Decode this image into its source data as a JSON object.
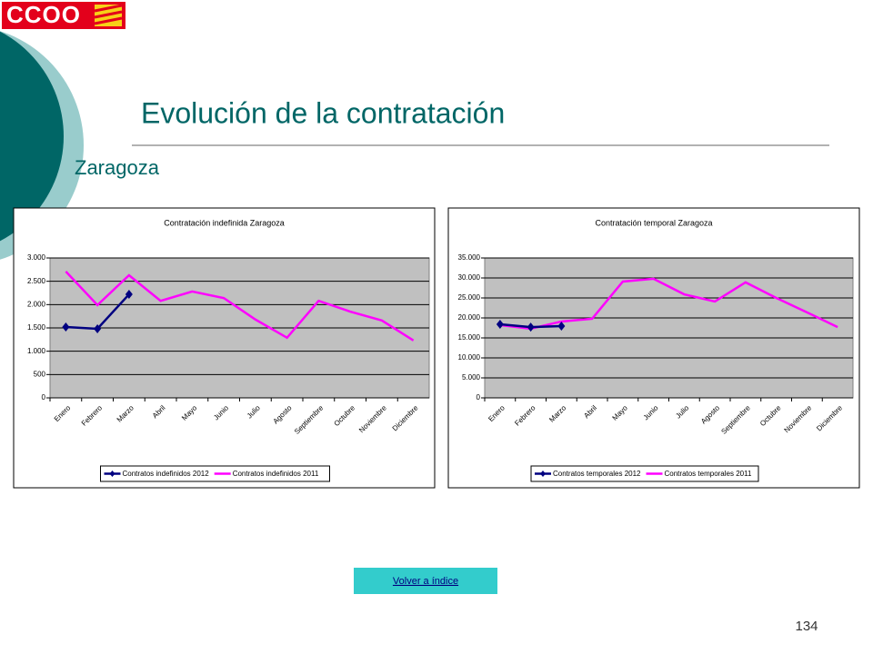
{
  "logo": "CCOO",
  "title": "Evolución de la contratación",
  "subtitle": "Zaragoza",
  "button": "Volver a índice",
  "page_number": "134",
  "chart_data": [
    {
      "type": "line",
      "title": "Contratación indefinida Zaragoza",
      "categories": [
        "Enero",
        "Febrero",
        "Marzo",
        "Abril",
        "Mayo",
        "Junio",
        "Julio",
        "Agosto",
        "Septiembre",
        "Octubre",
        "Noviembre",
        "Diciembre"
      ],
      "series": [
        {
          "name": "Contratos indefinidos 2012",
          "color": "#000080",
          "marker": "diamond",
          "values": [
            1520,
            1480,
            2220,
            null,
            null,
            null,
            null,
            null,
            null,
            null,
            null,
            null
          ]
        },
        {
          "name": "Contratos indefinidos 2011",
          "color": "#ff00ff",
          "values": [
            2710,
            1990,
            2630,
            2080,
            2280,
            2140,
            1680,
            1290,
            2080,
            1850,
            1660,
            1230
          ]
        }
      ],
      "ylim": [
        0,
        3000
      ],
      "yticks": [
        0,
        500,
        {
          "value": 1000,
          "label": "1.000"
        },
        {
          "value": 1500,
          "label": "1.500"
        },
        {
          "value": 2000,
          "label": "2.000"
        },
        {
          "value": 2500,
          "label": "2.500"
        },
        {
          "value": 3000,
          "label": "3.000"
        }
      ],
      "grid": true,
      "legend": "bottom"
    },
    {
      "type": "line",
      "title": "Contratación temporal Zaragoza",
      "categories": [
        "Enero",
        "Febrero",
        "Marzo",
        "Abril",
        "Mayo",
        "Junio",
        "Julio",
        "Agosto",
        "Septiembre",
        "Octubre",
        "Noviembre",
        "Diciembre"
      ],
      "series": [
        {
          "name": "Contratos temporales 2012",
          "color": "#000080",
          "marker": "diamond",
          "values": [
            18400,
            17700,
            17950,
            null,
            null,
            null,
            null,
            null,
            null,
            null,
            null,
            null
          ]
        },
        {
          "name": "Contratos temporales 2011",
          "color": "#ff00ff",
          "values": [
            18200,
            17300,
            19100,
            19800,
            29100,
            29800,
            25900,
            24100,
            28900,
            25000,
            21400,
            17700
          ]
        }
      ],
      "ylim": [
        0,
        35000
      ],
      "yticks": [
        0,
        {
          "value": 5000,
          "label": "5.000"
        },
        {
          "value": 10000,
          "label": "10.000"
        },
        {
          "value": 15000,
          "label": "15.000"
        },
        {
          "value": 20000,
          "label": "20.000"
        },
        {
          "value": 25000,
          "label": "25.000"
        },
        {
          "value": 30000,
          "label": "30.000"
        },
        {
          "value": 35000,
          "label": "35.000"
        }
      ],
      "grid": true,
      "legend": "bottom"
    }
  ]
}
